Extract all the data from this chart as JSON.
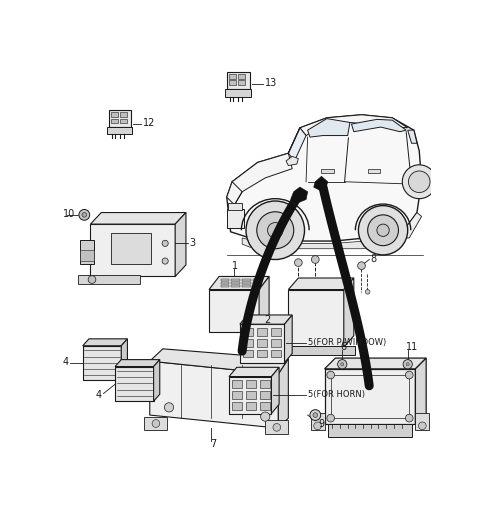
{
  "bg_color": "#ffffff",
  "line_color": "#1a1a1a",
  "fig_width": 4.8,
  "fig_height": 5.2,
  "dpi": 100,
  "label_fs": 7.0,
  "arrow_lw": 6.5,
  "arrow_color": "#111111"
}
